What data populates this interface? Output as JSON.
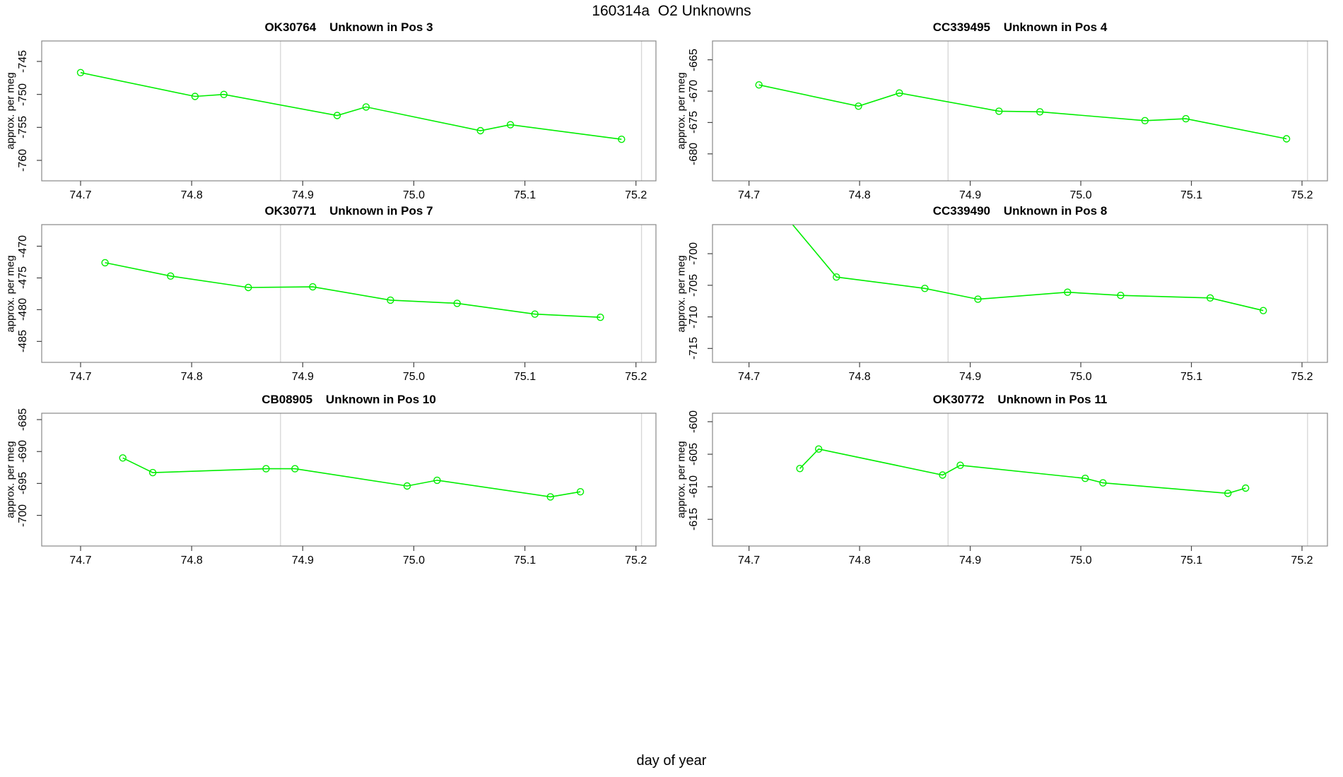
{
  "figure_title": "160314a  O2 Unknowns",
  "x_axis_label": "day of year",
  "chart_data": {
    "type": "line",
    "x_label": "day of year",
    "y_label": "approx. per meg",
    "x_ticks": [
      "74.7",
      "74.8",
      "74.9",
      "75.0",
      "75.1",
      "75.2"
    ],
    "reference_lines_x": [
      74.88,
      75.205
    ],
    "marker": "open-circle",
    "line_color": "#00ee00",
    "grid_color": "#d8d8d8",
    "frame_color": "#888888",
    "tick_color": "#444444",
    "subplots": [
      {
        "sample_id": "OK30764",
        "position_label": "Unknown in Pos 3",
        "title": "OK30764    Unknown in Pos 3",
        "y_ticks": [
          "-745",
          "-750",
          "-755",
          "-760"
        ],
        "ylim": [
          -763.1,
          -741.9
        ],
        "xlim": [
          74.665,
          75.218
        ],
        "points": [
          [
            74.7,
            -746.7
          ],
          [
            74.803,
            -750.3
          ],
          [
            74.829,
            -750.0
          ],
          [
            74.931,
            -753.2
          ],
          [
            74.957,
            -751.9
          ],
          [
            75.06,
            -755.5
          ],
          [
            75.087,
            -754.6
          ],
          [
            75.187,
            -756.8
          ]
        ]
      },
      {
        "sample_id": "CC339495",
        "position_label": "Unknown in Pos 4",
        "title": "CC339495    Unknown in Pos 4",
        "y_ticks": [
          "-665",
          "-670",
          "-675",
          "-680"
        ],
        "ylim": [
          -684.3,
          -662.0
        ],
        "xlim": [
          74.667,
          75.223
        ],
        "points": [
          [
            74.709,
            -669.0
          ],
          [
            74.799,
            -672.4
          ],
          [
            74.836,
            -670.3
          ],
          [
            74.926,
            -673.2
          ],
          [
            74.963,
            -673.3
          ],
          [
            75.058,
            -674.7
          ],
          [
            75.095,
            -674.4
          ],
          [
            75.186,
            -677.6
          ]
        ]
      },
      {
        "sample_id": "OK30771",
        "position_label": "Unknown in Pos 7",
        "title": "OK30771    Unknown in Pos 7",
        "y_ticks": [
          "-470",
          "-475",
          "-480",
          "-485"
        ],
        "ylim": [
          -488.3,
          -466.6
        ],
        "xlim": [
          74.665,
          75.218
        ],
        "points": [
          [
            74.722,
            -472.6
          ],
          [
            74.781,
            -474.7
          ],
          [
            74.851,
            -476.5
          ],
          [
            74.909,
            -476.4
          ],
          [
            74.979,
            -478.5
          ],
          [
            75.039,
            -479.0
          ],
          [
            75.109,
            -480.7
          ],
          [
            75.168,
            -481.2
          ]
        ]
      },
      {
        "sample_id": "CC339490",
        "position_label": "Unknown in Pos 8",
        "title": "CC339490    Unknown in Pos 8",
        "y_ticks": [
          "-700",
          "-705",
          "-710",
          "-715"
        ],
        "ylim": [
          -717.2,
          -695.4
        ],
        "xlim": [
          74.667,
          75.223
        ],
        "points": [
          [
            74.728,
            -693.0
          ],
          [
            74.779,
            -703.7
          ],
          [
            74.859,
            -705.5
          ],
          [
            74.907,
            -707.2
          ],
          [
            74.988,
            -706.1
          ],
          [
            75.036,
            -706.6
          ],
          [
            75.117,
            -707.0
          ],
          [
            75.165,
            -709.0
          ]
        ]
      },
      {
        "sample_id": "CB08905",
        "position_label": "Unknown in Pos 10",
        "title": "CB08905    Unknown in Pos 10",
        "y_ticks": [
          "-685",
          "-690",
          "-695",
          "-700"
        ],
        "ylim": [
          -704.8,
          -684.0
        ],
        "xlim": [
          74.665,
          75.218
        ],
        "points": [
          [
            74.738,
            -691.0
          ],
          [
            74.765,
            -693.3
          ],
          [
            74.867,
            -692.7
          ],
          [
            74.893,
            -692.7
          ],
          [
            74.994,
            -695.4
          ],
          [
            75.021,
            -694.5
          ],
          [
            75.123,
            -697.1
          ],
          [
            75.15,
            -696.3
          ]
        ]
      },
      {
        "sample_id": "OK30772",
        "position_label": "Unknown in Pos 11",
        "title": "OK30772    Unknown in Pos 11",
        "y_ticks": [
          "-600",
          "-605",
          "-610",
          "-615"
        ],
        "ylim": [
          -619.1,
          -598.7
        ],
        "xlim": [
          74.667,
          75.223
        ],
        "points": [
          [
            74.746,
            -607.2
          ],
          [
            74.763,
            -604.2
          ],
          [
            74.875,
            -608.2
          ],
          [
            74.891,
            -606.7
          ],
          [
            75.004,
            -608.7
          ],
          [
            75.02,
            -609.4
          ],
          [
            75.133,
            -611.0
          ],
          [
            75.149,
            -610.2
          ]
        ]
      }
    ]
  }
}
